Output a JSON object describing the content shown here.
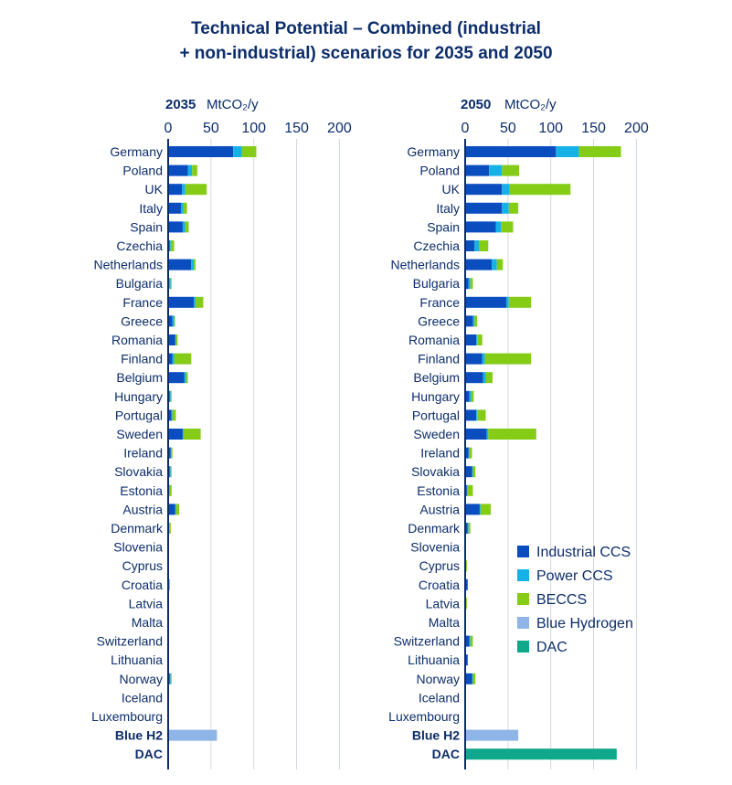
{
  "title_lines": [
    "Technical Potential – Combined (industrial",
    "+ non-industrial) scenarios for 2035 and 2050"
  ],
  "colors": {
    "Industrial CCS": "#0a4dbf",
    "Power CCS": "#16b2e6",
    "BECCS": "#84cc16",
    "Blue Hydrogen": "#8fb4e8",
    "DAC": "#0fa88a",
    "axis": "#0c2d6b",
    "grid": "#d3d8e0"
  },
  "chart_data": [
    {
      "type": "bar",
      "orientation": "horizontal",
      "stacked": true,
      "year_label": "2035",
      "unit_label": "MtCO₂/y",
      "xlim": [
        0,
        200
      ],
      "xticks": [
        0,
        50,
        100,
        150,
        200
      ],
      "grid": true,
      "categories": [
        "Germany",
        "Poland",
        "UK",
        "Italy",
        "Spain",
        "Czechia",
        "Netherlands",
        "Bulgaria",
        "France",
        "Greece",
        "Romania",
        "Finland",
        "Belgium",
        "Hungary",
        "Portugal",
        "Sweden",
        "Ireland",
        "Slovakia",
        "Estonia",
        "Austria",
        "Denmark",
        "Slovenia",
        "Cyprus",
        "Croatia",
        "Latvia",
        "Malta",
        "Switzerland",
        "Lithuania",
        "Norway",
        "Iceland",
        "Luxembourg",
        "Blue H2",
        "DAC"
      ],
      "bold_categories": [
        "Blue H2",
        "DAC"
      ],
      "series": [
        {
          "name": "Industrial CCS",
          "values": [
            76,
            23,
            16,
            15,
            17,
            2,
            27,
            1,
            30,
            5,
            8,
            5,
            19,
            2,
            4,
            17,
            3,
            2,
            1,
            8,
            1,
            0,
            0,
            1,
            0,
            0,
            0,
            0,
            2,
            0,
            0,
            0,
            0
          ]
        },
        {
          "name": "Power CCS",
          "values": [
            10,
            5,
            4,
            3,
            3,
            1,
            3,
            2,
            2,
            2,
            1,
            2,
            2,
            1,
            1,
            1,
            1,
            1,
            1,
            1,
            0,
            0,
            0,
            0,
            0,
            0,
            0,
            0,
            1,
            0,
            0,
            0,
            0
          ]
        },
        {
          "name": "BECCS",
          "values": [
            17,
            6,
            25,
            4,
            4,
            4,
            2,
            1,
            9,
            1,
            2,
            20,
            2,
            1,
            4,
            20,
            1,
            1,
            2,
            4,
            2,
            1,
            0,
            1,
            1,
            0,
            1,
            0,
            1,
            0,
            0,
            0,
            0
          ]
        },
        {
          "name": "Blue Hydrogen",
          "values": [
            0,
            0,
            0,
            0,
            0,
            0,
            0,
            0,
            0,
            0,
            0,
            0,
            0,
            0,
            0,
            0,
            0,
            0,
            0,
            0,
            0,
            0,
            0,
            0,
            0,
            0,
            0,
            0,
            0,
            0,
            0,
            57,
            0
          ]
        },
        {
          "name": "DAC",
          "values": [
            0,
            0,
            0,
            0,
            0,
            0,
            0,
            0,
            0,
            0,
            0,
            0,
            0,
            0,
            0,
            0,
            0,
            0,
            0,
            0,
            0,
            0,
            0,
            0,
            0,
            0,
            0,
            0,
            0,
            0,
            0,
            0,
            0
          ]
        }
      ]
    },
    {
      "type": "bar",
      "orientation": "horizontal",
      "stacked": true,
      "year_label": "2050",
      "unit_label": "MtCO₂/y",
      "xlim": [
        0,
        200
      ],
      "xticks": [
        0,
        50,
        100,
        150,
        200
      ],
      "grid": true,
      "categories": [
        "Germany",
        "Poland",
        "UK",
        "Italy",
        "Spain",
        "Czechia",
        "Netherlands",
        "Bulgaria",
        "France",
        "Greece",
        "Romania",
        "Finland",
        "Belgium",
        "Hungary",
        "Portugal",
        "Sweden",
        "Ireland",
        "Slovakia",
        "Estonia",
        "Austria",
        "Denmark",
        "Slovenia",
        "Cyprus",
        "Croatia",
        "Latvia",
        "Malta",
        "Switzerland",
        "Lithuania",
        "Norway",
        "Iceland",
        "Luxembourg",
        "Blue H2",
        "DAC"
      ],
      "bold_categories": [
        "Blue H2",
        "DAC"
      ],
      "series": [
        {
          "name": "Industrial CCS",
          "values": [
            106,
            28,
            43,
            43,
            36,
            11,
            31,
            4,
            48,
            9,
            13,
            20,
            21,
            5,
            13,
            25,
            4,
            8,
            2,
            17,
            3,
            0,
            0,
            3,
            0,
            0,
            5,
            3,
            8,
            0,
            0,
            0,
            0
          ]
        },
        {
          "name": "Power CCS",
          "values": [
            27,
            15,
            9,
            8,
            6,
            5,
            6,
            2,
            3,
            2,
            1,
            3,
            3,
            2,
            1,
            2,
            1,
            1,
            1,
            1,
            1,
            0,
            1,
            0,
            1,
            0,
            1,
            0,
            1,
            0,
            0,
            0,
            0
          ]
        },
        {
          "name": "BECCS",
          "values": [
            49,
            20,
            71,
            11,
            14,
            11,
            7,
            3,
            26,
            3,
            6,
            54,
            8,
            3,
            10,
            56,
            3,
            3,
            6,
            12,
            2,
            1,
            1,
            0,
            1,
            1,
            3,
            0,
            3,
            1,
            1,
            0,
            0
          ]
        },
        {
          "name": "Blue Hydrogen",
          "values": [
            0,
            0,
            0,
            0,
            0,
            0,
            0,
            0,
            0,
            0,
            0,
            0,
            0,
            0,
            0,
            0,
            0,
            0,
            0,
            0,
            0,
            0,
            0,
            0,
            0,
            0,
            0,
            0,
            0,
            0,
            0,
            62,
            0
          ]
        },
        {
          "name": "DAC",
          "values": [
            0,
            0,
            0,
            0,
            0,
            0,
            0,
            0,
            0,
            0,
            0,
            0,
            0,
            0,
            0,
            0,
            0,
            0,
            0,
            0,
            0,
            0,
            0,
            0,
            0,
            0,
            0,
            0,
            0,
            0,
            0,
            0,
            177
          ]
        }
      ],
      "legend": {
        "placement": "lower-right",
        "items": [
          "Industrial CCS",
          "Power CCS",
          "BECCS",
          "Blue Hydrogen",
          "DAC"
        ]
      }
    }
  ]
}
